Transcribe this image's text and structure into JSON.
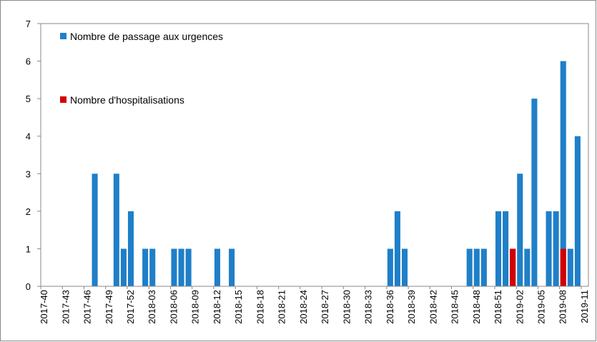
{
  "chart_data": {
    "type": "bar",
    "categories": [
      "2017-40",
      null,
      null,
      "2017-43",
      null,
      null,
      "2017-46",
      null,
      null,
      "2017-49",
      null,
      null,
      "2017-52",
      null,
      null,
      "2018-03",
      null,
      null,
      "2018-06",
      null,
      null,
      "2018-09",
      null,
      null,
      "2018-12",
      null,
      null,
      "2018-15",
      null,
      null,
      "2018-18",
      null,
      null,
      "2018-21",
      null,
      null,
      "2018-24",
      null,
      null,
      "2018-27",
      null,
      null,
      "2018-30",
      null,
      null,
      "2018-33",
      null,
      null,
      "2018-36",
      null,
      null,
      "2018-39",
      null,
      null,
      "2018-42",
      null,
      null,
      "2018-45",
      null,
      null,
      "2018-48",
      null,
      null,
      "2018-51",
      null,
      null,
      "2019-02",
      null,
      null,
      "2019-05",
      null,
      null,
      "2019-08",
      null,
      null,
      "2019-11"
    ],
    "series": [
      {
        "name": "Nombre de passage aux urgences",
        "color": "#1f7fc8",
        "values": [
          0,
          0,
          0,
          0,
          0,
          0,
          0,
          3,
          0,
          0,
          3,
          1,
          2,
          0,
          1,
          1,
          0,
          0,
          1,
          1,
          1,
          0,
          0,
          0,
          1,
          0,
          1,
          0,
          0,
          0,
          0,
          0,
          0,
          0,
          0,
          0,
          0,
          0,
          0,
          0,
          0,
          0,
          0,
          0,
          0,
          0,
          0,
          0,
          1,
          2,
          1,
          0,
          0,
          0,
          0,
          0,
          0,
          0,
          0,
          1,
          1,
          1,
          0,
          2,
          2,
          1,
          3,
          1,
          5,
          0,
          2,
          2,
          6,
          1,
          4,
          0
        ]
      },
      {
        "name": "Nombre d'hospitalisations",
        "color": "#d40000",
        "values": [
          0,
          0,
          0,
          0,
          0,
          0,
          0,
          0,
          0,
          0,
          0,
          0,
          0,
          0,
          0,
          0,
          0,
          0,
          0,
          0,
          0,
          0,
          0,
          0,
          0,
          0,
          0,
          0,
          0,
          0,
          0,
          0,
          0,
          0,
          0,
          0,
          0,
          0,
          0,
          0,
          0,
          0,
          0,
          0,
          0,
          0,
          0,
          0,
          0,
          0,
          0,
          0,
          0,
          0,
          0,
          0,
          0,
          0,
          0,
          0,
          0,
          0,
          0,
          0,
          0,
          1,
          0,
          0,
          0,
          0,
          0,
          0,
          1,
          0,
          0,
          0
        ]
      }
    ],
    "ylim": [
      0,
      7
    ],
    "yticks": [
      0,
      1,
      2,
      3,
      4,
      5,
      6,
      7
    ],
    "grid": false
  }
}
